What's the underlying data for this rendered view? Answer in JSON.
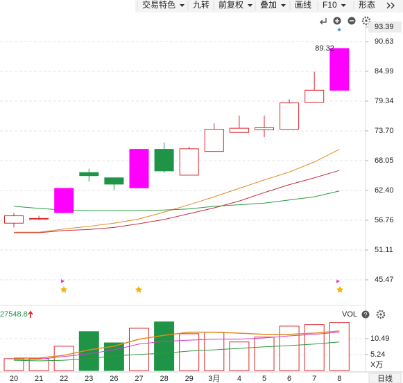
{
  "toolbar": {
    "items": [
      {
        "label": "交易特色",
        "dropdown": true
      },
      {
        "label": "九转",
        "dropdown": false
      },
      {
        "label": "前复权",
        "dropdown": true
      },
      {
        "label": "叠加",
        "dropdown": true
      },
      {
        "label": "画线",
        "dropdown": false
      },
      {
        "label": "F10",
        "dropdown": true
      },
      {
        "label": "形态",
        "dropdown": false
      }
    ]
  },
  "period": "日线",
  "chart_data": [
    {
      "type": "candlestick",
      "categories": [
        "20",
        "21",
        "22",
        "23",
        "26",
        "27",
        "28",
        "29",
        "3月",
        "4",
        "5",
        "6",
        "7",
        "8"
      ],
      "open": [
        56.2,
        57.0,
        58.2,
        65.8,
        64.8,
        62.9,
        70.2,
        65.3,
        69.8,
        73.4,
        73.9,
        74.0,
        79.1,
        81.4
      ],
      "high": [
        58.1,
        57.6,
        62.8,
        66.5,
        64.8,
        70.2,
        71.5,
        70.7,
        75.1,
        76.6,
        76.6,
        79.7,
        84.9,
        89.32
      ],
      "low": [
        55.4,
        56.8,
        58.2,
        64.1,
        62.5,
        62.9,
        65.7,
        65.3,
        69.8,
        73.4,
        72.5,
        74.0,
        79.1,
        81.4
      ],
      "close": [
        57.6,
        57.1,
        62.8,
        65.2,
        63.6,
        70.2,
        66.1,
        70.3,
        74.0,
        74.2,
        74.3,
        79.0,
        81.4,
        89.32
      ],
      "up_color": "#d9262c",
      "candle_colors": [
        "#d9262c",
        "#d9262c",
        "#ff00ff",
        "#1f9447",
        "#1f9447",
        "#ff00ff",
        "#1f9447",
        "#d9262c",
        "#d9262c",
        "#d9262c",
        "#d9262c",
        "#d9262c",
        "#d9262c",
        "#ff00ff"
      ],
      "series": [
        {
          "color": "#e08a1e",
          "values": [
            54.5,
            54.5,
            55.1,
            55.6,
            56.2,
            57.0,
            58.3,
            59.7,
            61.2,
            62.8,
            64.4,
            65.9,
            67.8,
            70.2
          ]
        },
        {
          "color": "#c8283c",
          "values": [
            54.4,
            54.4,
            54.8,
            55.0,
            55.4,
            56.1,
            56.9,
            58.0,
            59.1,
            60.4,
            62.0,
            63.5,
            64.8,
            66.2
          ]
        },
        {
          "color": "#2a9a3e",
          "values": [
            59.4,
            59.0,
            58.7,
            58.6,
            58.6,
            58.6,
            58.7,
            58.9,
            59.4,
            59.7,
            60.0,
            60.6,
            61.2,
            62.3
          ]
        }
      ],
      "ylim": [
        40.74,
        95.88
      ],
      "yticks": [
        93.39,
        90.63,
        84.99,
        79.34,
        {
          "value": 73.7,
          "label": "73.70"
        },
        68.05,
        {
          "value": 62.4,
          "label": "62.40"
        },
        56.76,
        51.11,
        45.47
      ],
      "grid": true
    },
    {
      "type": "bar",
      "title": "VOL",
      "value_text": "27548.8",
      "unit": "X万",
      "values": [
        3.9,
        3.9,
        8.0,
        12.8,
        9.1,
        13.9,
        16.0,
        12.1,
        12.6,
        9.4,
        11.0,
        14.6,
        15.1,
        15.8
      ],
      "colors": [
        "#d9262c",
        "#d9262c",
        "#d9262c",
        "#1f9447",
        "#1f9447",
        "#d9262c",
        "#1f9447",
        "#d9262c",
        "#d9262c",
        "#d9262c",
        "#d9262c",
        "#d9262c",
        "#d9262c",
        "#d9262c"
      ],
      "series": [
        {
          "color": "#e08a1e",
          "values": [
            4.1,
            4.1,
            5.0,
            6.8,
            8.0,
            10.3,
            11.6,
            12.6,
            12.6,
            12.3,
            11.9,
            11.9,
            12.3,
            13.0
          ]
        },
        {
          "color": "#d43cc8",
          "values": [
            3.7,
            3.7,
            4.6,
            5.5,
            6.8,
            8.7,
            9.6,
            10.0,
            10.3,
            10.3,
            10.7,
            11.4,
            11.9,
            12.6
          ]
        },
        {
          "color": "#2a9a3e",
          "values": [
            3.4,
            3.2,
            3.4,
            3.9,
            4.8,
            5.3,
            5.7,
            6.4,
            6.8,
            7.3,
            7.8,
            8.2,
            8.7,
            9.4
          ]
        }
      ],
      "ylim": [
        0,
        20.5
      ],
      "yticks": [
        5.24,
        10.49
      ],
      "grid": true
    }
  ]
}
